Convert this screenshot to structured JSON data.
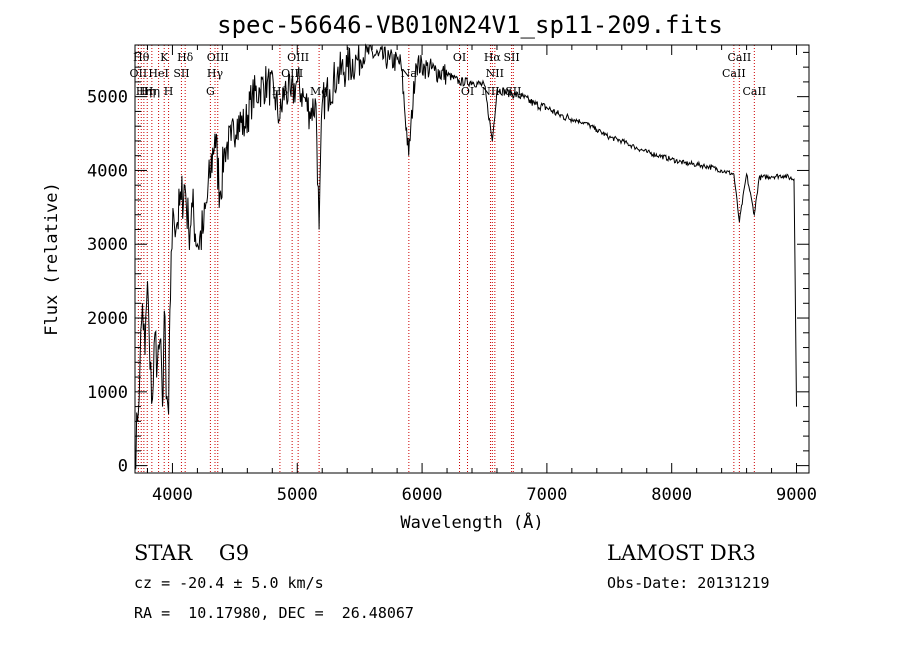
{
  "chart_data": {
    "type": "line",
    "title": "spec-56646-VB010N24V1_sp11-209.fits",
    "xlabel": "Wavelength (Å)",
    "ylabel": "Flux (relative)",
    "xlim": [
      3700,
      9100
    ],
    "ylim": [
      -100,
      5700
    ],
    "xticks": [
      4000,
      5000,
      6000,
      7000,
      8000,
      9000
    ],
    "yticks": [
      0,
      1000,
      2000,
      3000,
      4000,
      5000
    ],
    "x_minor_step": 200,
    "y_minor_step": 200,
    "series": [
      {
        "name": "spectrum",
        "x": [
          3700,
          3720,
          3740,
          3760,
          3780,
          3800,
          3820,
          3840,
          3860,
          3880,
          3900,
          3920,
          3935,
          3950,
          3969,
          3990,
          4010,
          4040,
          4070,
          4100,
          4130,
          4160,
          4200,
          4250,
          4300,
          4340,
          4380,
          4420,
          4470,
          4520,
          4580,
          4640,
          4700,
          4760,
          4820,
          4861,
          4900,
          4950,
          5000,
          5050,
          5100,
          5150,
          5175,
          5200,
          5260,
          5320,
          5400,
          5480,
          5560,
          5650,
          5740,
          5830,
          5893,
          5950,
          6020,
          6100,
          6200,
          6300,
          6400,
          6500,
          6563,
          6600,
          6700,
          6800,
          6900,
          7000,
          7100,
          7200,
          7300,
          7400,
          7500,
          7600,
          7700,
          7800,
          7900,
          8000,
          8100,
          8200,
          8300,
          8400,
          8498,
          8542,
          8600,
          8662,
          8700,
          8800,
          8900,
          8980,
          9000
        ],
        "values": [
          0,
          600,
          1400,
          2200,
          1500,
          2500,
          1300,
          900,
          1800,
          1400,
          1700,
          800,
          2100,
          900,
          700,
          2900,
          3400,
          3300,
          3600,
          3800,
          3200,
          3500,
          3000,
          3200,
          3900,
          4500,
          3700,
          4300,
          4400,
          4700,
          4600,
          5000,
          5100,
          5200,
          5000,
          4700,
          5100,
          5000,
          5200,
          5000,
          4800,
          4900,
          3200,
          4900,
          5100,
          5300,
          5400,
          5500,
          5600,
          5550,
          5500,
          5450,
          4200,
          5450,
          5400,
          5350,
          5300,
          5200,
          5200,
          5150,
          4400,
          5100,
          5050,
          5000,
          4900,
          4850,
          4750,
          4700,
          4650,
          4550,
          4450,
          4400,
          4320,
          4250,
          4200,
          4150,
          4100,
          4080,
          4050,
          4000,
          3950,
          3300,
          3950,
          3400,
          3900,
          3920,
          3930,
          3880,
          800
        ]
      }
    ],
    "lines": [
      {
        "wl": 3727,
        "name": "OII",
        "tier": 2
      },
      {
        "wl": 3750,
        "name": "Hθ",
        "tier": 1
      },
      {
        "wl": 3771,
        "name": "Hη",
        "tier": 3
      },
      {
        "wl": 3798,
        "name": "Hη",
        "tier": 3
      },
      {
        "wl": 3835,
        "name": "Hη",
        "tier": 3
      },
      {
        "wl": 3889,
        "name": "HeI",
        "tier": 2
      },
      {
        "wl": 3934,
        "name": "K",
        "tier": 1
      },
      {
        "wl": 3969,
        "name": "H",
        "tier": 3
      },
      {
        "wl": 4072,
        "name": "SII",
        "tier": 2
      },
      {
        "wl": 4102,
        "name": "Hδ",
        "tier": 1
      },
      {
        "wl": 4304,
        "name": "G",
        "tier": 3
      },
      {
        "wl": 4341,
        "name": "Hγ",
        "tier": 2
      },
      {
        "wl": 4363,
        "name": "OIII",
        "tier": 1
      },
      {
        "wl": 4861,
        "name": "Hβ",
        "tier": 3
      },
      {
        "wl": 4959,
        "name": "OIII",
        "tier": 2
      },
      {
        "wl": 5007,
        "name": "OIII",
        "tier": 1
      },
      {
        "wl": 5175,
        "name": "Mg",
        "tier": 3
      },
      {
        "wl": 5894,
        "name": "Na",
        "tier": 2
      },
      {
        "wl": 6300,
        "name": "OI",
        "tier": 1
      },
      {
        "wl": 6364,
        "name": "OI",
        "tier": 3
      },
      {
        "wl": 6548,
        "name": "NII",
        "tier": 3
      },
      {
        "wl": 6563,
        "name": "Hα",
        "tier": 1
      },
      {
        "wl": 6583,
        "name": "NII",
        "tier": 2
      },
      {
        "wl": 6717,
        "name": "SII",
        "tier": 1
      },
      {
        "wl": 6731,
        "name": "SII",
        "tier": 3
      },
      {
        "wl": 8498,
        "name": "CaII",
        "tier": 2
      },
      {
        "wl": 8542,
        "name": "CaII",
        "tier": 1
      },
      {
        "wl": 8662,
        "name": "CaII",
        "tier": 3
      }
    ]
  },
  "info": {
    "class_line": "STAR    G9",
    "survey": "LAMOST DR3",
    "cz": "cz = -20.4 ± 5.0 km/s",
    "obs_date": "Obs-Date: 20131219",
    "radec": "RA =  10.17980, DEC =  26.48067"
  },
  "colors": {
    "line_marker": "#cc0000",
    "spectrum": "#000000",
    "axes": "#000000"
  }
}
